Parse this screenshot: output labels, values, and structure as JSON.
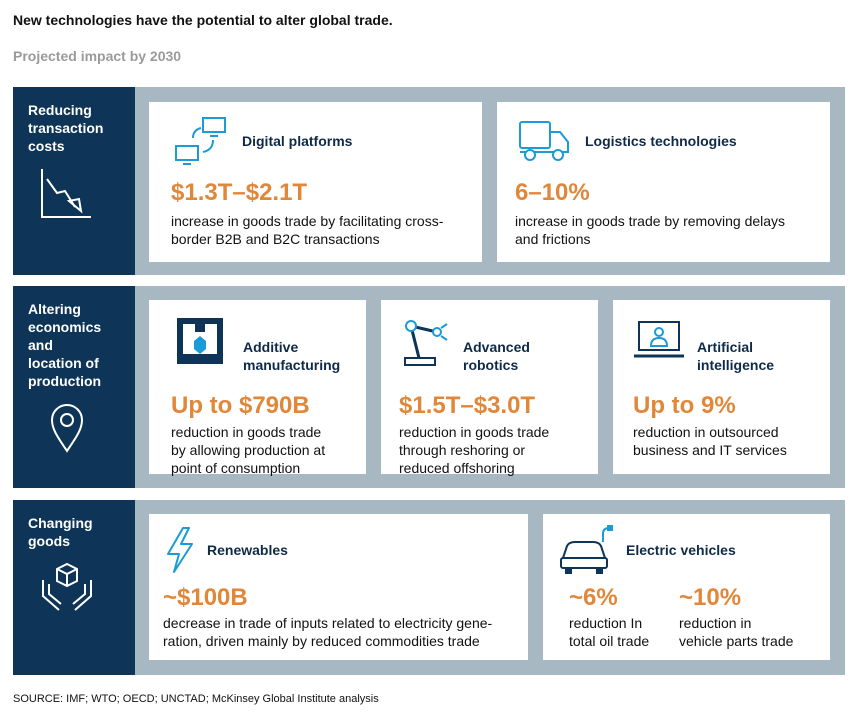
{
  "header": {
    "title": "New technologies have the potential to alter global trade.",
    "subtitle": "Projected impact by 2030"
  },
  "sections": [
    {
      "label": "Reducing\ntransaction\ncosts",
      "icon": "declining-chart-icon",
      "cards": [
        {
          "icon": "devices-icon",
          "title": "Digital platforms",
          "value": "$1.3T–$2.1T",
          "description": "increase in goods trade by facilitating cross-\nborder B2B and B2C transactions"
        },
        {
          "icon": "truck-icon",
          "title": "Logistics technologies",
          "value": "6–10%",
          "description": "increase in goods trade by removing delays\nand frictions"
        }
      ]
    },
    {
      "label": "Altering\neconomics\nand\nlocation of\nproduction",
      "icon": "location-pin-icon",
      "cards": [
        {
          "icon": "3d-printer-icon",
          "title": "Additive\nmanufacturing",
          "value": "Up to $790B",
          "description": "reduction in goods trade\nby allowing production at\npoint of consumption"
        },
        {
          "icon": "robot-arm-icon",
          "title": "Advanced\nrobotics",
          "value": "$1.5T–$3.0T",
          "description": "reduction in goods trade\nthrough reshoring or\nreduced offshoring"
        },
        {
          "icon": "laptop-user-icon",
          "title": "Artificial\nintelligence",
          "value": "Up to 9%",
          "description": "reduction in outsourced\nbusiness and IT services"
        }
      ]
    },
    {
      "label": "Changing\ngoods",
      "icon": "hands-box-icon",
      "cards": [
        {
          "icon": "lightning-icon",
          "title": "Renewables",
          "value": "~$100B",
          "description": "decrease in trade of inputs related to electricity gene-\nration, driven mainly by reduced commodities trade"
        },
        {
          "icon": "electric-car-icon",
          "title": "Electric vehicles",
          "values": [
            {
              "value": "~6%",
              "description": "reduction In\ntotal oil trade"
            },
            {
              "value": "~10%",
              "description": "reduction in\nvehicle parts trade"
            }
          ]
        }
      ]
    }
  ],
  "source": "SOURCE:  IMF; WTO; OECD; UNCTAD; McKinsey Global Institute analysis",
  "colors": {
    "navy": "#0e3557",
    "band": "#a7b8c3",
    "accent": "#e0873a",
    "icon_blue": "#1b9bd7"
  }
}
